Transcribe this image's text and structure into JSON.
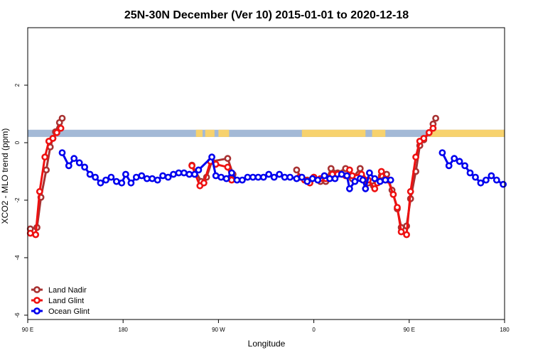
{
  "chart_data": {
    "type": "line",
    "title": "25N-30N December (Ver 10)   2015-01-01 to 2020-12-18",
    "xlabel": "Longitude",
    "ylabel": "XCO2 - MLO trend (ppm)",
    "xlim": [
      0,
      360
    ],
    "ylim": [
      -6.15,
      4
    ],
    "x_ticks": [
      {
        "value": 0,
        "label": "90 E"
      },
      {
        "value": 72,
        "label": "180"
      },
      {
        "value": 144,
        "label": "90 W"
      },
      {
        "value": 216,
        "label": "0"
      },
      {
        "value": 288,
        "label": "90 E"
      },
      {
        "value": 360,
        "label": "180"
      }
    ],
    "y_ticks": [
      {
        "value": 2,
        "label": "2"
      },
      {
        "value": 0,
        "label": "0"
      },
      {
        "value": -2,
        "label": "-2"
      },
      {
        "value": -4,
        "label": "-4"
      },
      {
        "value": -6,
        "label": "-6"
      }
    ],
    "land_band": {
      "y_range": [
        0.2,
        0.45
      ],
      "ocean_color": "#a3b9d6",
      "land_color": "#f7d26d",
      "land_segments": [
        [
          127,
          132
        ],
        [
          134,
          141
        ],
        [
          144,
          152
        ],
        [
          207,
          255
        ],
        [
          260,
          270
        ],
        [
          303,
          360
        ]
      ]
    },
    "series": [
      {
        "name": "Land Nadir",
        "color": "#a83232",
        "points": [
          [
            2,
            -3
          ],
          [
            7,
            -2.95
          ],
          [
            10,
            -1.9
          ],
          [
            14,
            -0.95
          ],
          [
            17,
            -0.15
          ],
          [
            19,
            0.15
          ],
          [
            21,
            0.38
          ],
          [
            24,
            0.7
          ],
          [
            26,
            0.85
          ],
          [
            124,
            -0.78
          ],
          [
            131,
            -1.35
          ],
          [
            135,
            -1.2
          ],
          [
            139,
            -0.65
          ],
          [
            151,
            -0.55
          ],
          [
            155,
            -1.1
          ],
          [
            203,
            -0.95
          ],
          [
            206,
            -1.2
          ],
          [
            211,
            -1.3
          ],
          [
            216,
            -1.2
          ],
          [
            221,
            -1.35
          ],
          [
            225,
            -1.35
          ],
          [
            229,
            -0.9
          ],
          [
            234,
            -1.05
          ],
          [
            240,
            -0.9
          ],
          [
            245,
            -1.25
          ],
          [
            251,
            -0.9
          ],
          [
            257,
            -1.4
          ],
          [
            261,
            -1.5
          ],
          [
            263,
            -1.3
          ],
          [
            267,
            -1.15
          ],
          [
            271,
            -1.1
          ],
          [
            275,
            -1.65
          ],
          [
            279,
            -2.3
          ],
          [
            282,
            -2.95
          ],
          [
            286,
            -2.9
          ],
          [
            289,
            -1.95
          ],
          [
            293,
            -1.0
          ],
          [
            296,
            -0.1
          ],
          [
            299,
            0.1
          ],
          [
            303,
            0.35
          ],
          [
            306,
            0.65
          ],
          [
            308,
            0.85
          ]
        ]
      },
      {
        "name": "Land Glint",
        "color": "#ee1111",
        "points": [
          [
            2,
            -3.15
          ],
          [
            6,
            -3.2
          ],
          [
            9,
            -1.7
          ],
          [
            13,
            -0.5
          ],
          [
            16,
            0.05
          ],
          [
            19,
            0.15
          ],
          [
            22,
            0.35
          ],
          [
            25,
            0.5
          ],
          [
            124,
            -0.8
          ],
          [
            130,
            -1.5
          ],
          [
            133,
            -1.4
          ],
          [
            138,
            -0.65
          ],
          [
            142,
            -0.75
          ],
          [
            151,
            -0.85
          ],
          [
            154,
            -1.3
          ],
          [
            205,
            -1.2
          ],
          [
            209,
            -1.3
          ],
          [
            213,
            -1.4
          ],
          [
            216,
            -1.2
          ],
          [
            221,
            -1.25
          ],
          [
            225,
            -1.25
          ],
          [
            230,
            -1.1
          ],
          [
            234,
            -1.1
          ],
          [
            240,
            -1.15
          ],
          [
            243,
            -0.95
          ],
          [
            245,
            -1.15
          ],
          [
            252,
            -1.1
          ],
          [
            257,
            -1.3
          ],
          [
            262,
            -1.6
          ],
          [
            264,
            -1.4
          ],
          [
            267,
            -1.0
          ],
          [
            272,
            -1.3
          ],
          [
            276,
            -1.8
          ],
          [
            279,
            -2.25
          ],
          [
            282,
            -3.1
          ],
          [
            286,
            -3.2
          ],
          [
            289,
            -1.7
          ],
          [
            293,
            -0.5
          ],
          [
            296,
            0.05
          ],
          [
            299,
            0.15
          ],
          [
            303,
            0.35
          ],
          [
            306,
            0.5
          ]
        ]
      },
      {
        "name": "Ocean Glint",
        "color": "#0000ee",
        "points": [
          [
            26,
            -0.35
          ],
          [
            31,
            -0.8
          ],
          [
            35,
            -0.55
          ],
          [
            39,
            -0.7
          ],
          [
            43,
            -0.85
          ],
          [
            47,
            -1.1
          ],
          [
            51,
            -1.2
          ],
          [
            55,
            -1.4
          ],
          [
            59,
            -1.3
          ],
          [
            63,
            -1.2
          ],
          [
            67,
            -1.35
          ],
          [
            71,
            -1.4
          ],
          [
            74,
            -1.1
          ],
          [
            78,
            -1.4
          ],
          [
            82,
            -1.2
          ],
          [
            86,
            -1.15
          ],
          [
            90,
            -1.25
          ],
          [
            94,
            -1.25
          ],
          [
            98,
            -1.3
          ],
          [
            102,
            -1.15
          ],
          [
            106,
            -1.2
          ],
          [
            110,
            -1.1
          ],
          [
            114,
            -1.05
          ],
          [
            118,
            -1.05
          ],
          [
            122,
            -1.1
          ],
          [
            126,
            -1.1
          ],
          [
            129,
            -0.95
          ],
          [
            139,
            -0.5
          ],
          [
            142,
            -1.15
          ],
          [
            146,
            -1.2
          ],
          [
            150,
            -1.25
          ],
          [
            154,
            -1.05
          ],
          [
            158,
            -1.3
          ],
          [
            162,
            -1.3
          ],
          [
            166,
            -1.2
          ],
          [
            170,
            -1.2
          ],
          [
            174,
            -1.2
          ],
          [
            178,
            -1.2
          ],
          [
            182,
            -1.1
          ],
          [
            186,
            -1.2
          ],
          [
            190,
            -1.1
          ],
          [
            194,
            -1.2
          ],
          [
            198,
            -1.2
          ],
          [
            203,
            -1.25
          ],
          [
            207,
            -1.2
          ],
          [
            211,
            -1.35
          ],
          [
            215,
            -1.25
          ],
          [
            219,
            -1.3
          ],
          [
            224,
            -1.15
          ],
          [
            228,
            -1.25
          ],
          [
            232,
            -1.25
          ],
          [
            237,
            -1.1
          ],
          [
            241,
            -1.15
          ],
          [
            243,
            -1.6
          ],
          [
            247,
            -1.35
          ],
          [
            251,
            -1.25
          ],
          [
            253,
            -1.3
          ],
          [
            255,
            -1.6
          ],
          [
            258,
            -1.05
          ],
          [
            262,
            -1.25
          ],
          [
            266,
            -1.35
          ],
          [
            270,
            -1.3
          ],
          [
            274,
            -1.3
          ],
          [
            313,
            -0.35
          ],
          [
            318,
            -0.8
          ],
          [
            322,
            -0.55
          ],
          [
            326,
            -0.65
          ],
          [
            330,
            -0.8
          ],
          [
            334,
            -1.05
          ],
          [
            338,
            -1.2
          ],
          [
            342,
            -1.4
          ],
          [
            346,
            -1.3
          ],
          [
            350,
            -1.15
          ],
          [
            354,
            -1.3
          ],
          [
            359,
            -1.45
          ]
        ]
      }
    ],
    "legend": {
      "position": "bottom-left",
      "entries": [
        "Land Nadir",
        "Land Glint",
        "Ocean Glint"
      ]
    }
  }
}
